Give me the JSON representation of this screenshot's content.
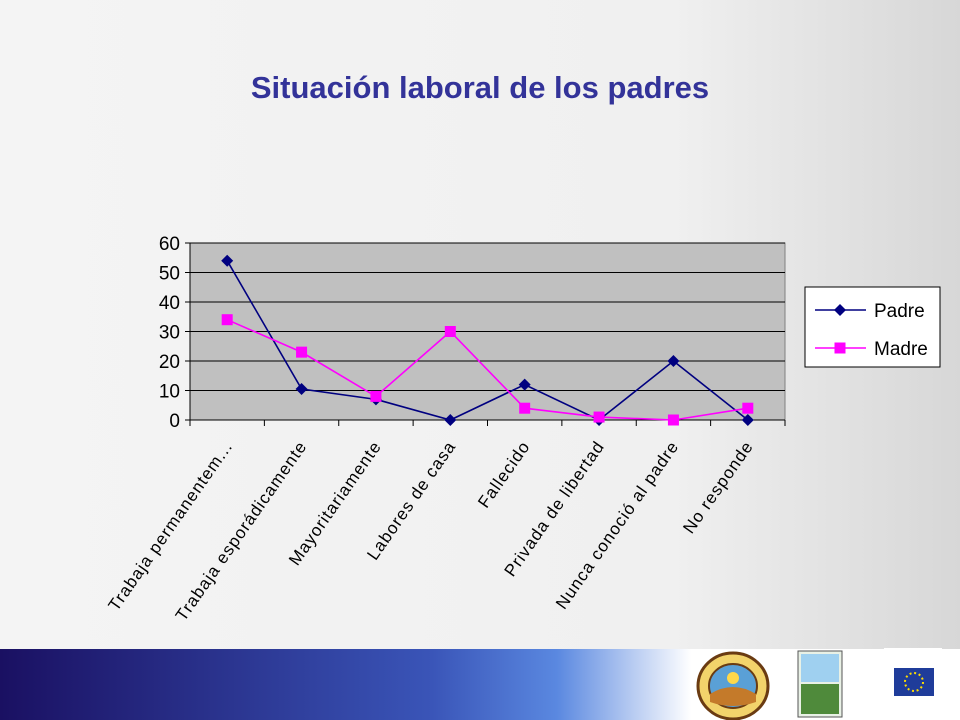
{
  "slide": {
    "title": "Situación laboral de los padres"
  },
  "chart_data": {
    "type": "line",
    "categories": [
      "Trabaja permanentem...",
      "Trabaja esporádicamente",
      "Mayoritariamente",
      "Labores de casa",
      "Fallecido",
      "Privada de libertad",
      "Nunca conoció al padre",
      "No responde"
    ],
    "series": [
      {
        "name": "Padre",
        "values": [
          54,
          10.5,
          7,
          0,
          12,
          0,
          20,
          0
        ],
        "color": "#000080",
        "marker": "diamond"
      },
      {
        "name": "Madre",
        "values": [
          34,
          23,
          8,
          30,
          4,
          1,
          0,
          4
        ],
        "color": "#ff00ff",
        "marker": "square"
      }
    ],
    "ylim": [
      0,
      60
    ],
    "yticks": [
      0,
      10,
      20,
      30,
      40,
      50,
      60
    ],
    "grid": true,
    "legend": "right",
    "plot_background": "#c0c0c0"
  },
  "footer": {
    "logos": [
      {
        "name": "municipality-seal",
        "label": "municipality seal"
      },
      {
        "name": "red-14",
        "label": "red 14"
      },
      {
        "name": "urbal-europeaid",
        "label": "URB AL EuropeAid"
      }
    ]
  }
}
